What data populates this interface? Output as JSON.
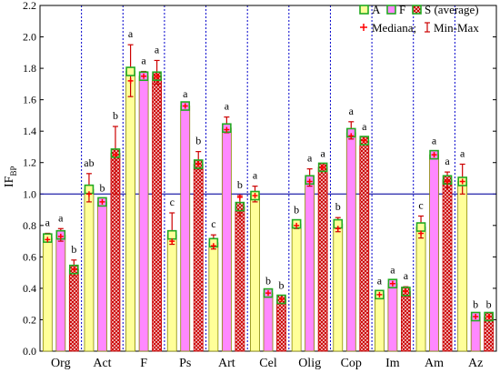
{
  "chart_data": {
    "type": "bar",
    "ylabel": "IF",
    "ylabel_subscript": "BP",
    "xlabel": "",
    "ylim": [
      0,
      2.2
    ],
    "yticks": [
      "0.0",
      "0.2",
      "0.4",
      "0.6",
      "0.8",
      "1.0",
      "1.2",
      "1.4",
      "1.6",
      "1.8",
      "2.0",
      "2.2"
    ],
    "reference_line": 1.0,
    "categories": [
      "Org",
      "Act",
      "F",
      "Ps",
      "Art",
      "Cel",
      "Olig",
      "Cop",
      "Im",
      "Am",
      "Az"
    ],
    "series": [
      {
        "name": "A",
        "fill": "#ffff99",
        "values": [
          0.72,
          1.03,
          1.78,
          0.74,
          0.69,
          0.99,
          0.81,
          0.81,
          0.36,
          0.79,
          1.08
        ],
        "medians": [
          0.71,
          1.0,
          1.72,
          0.7,
          0.67,
          0.99,
          0.8,
          0.78,
          0.36,
          0.75,
          1.08
        ],
        "mins": [
          0.7,
          0.95,
          1.62,
          0.68,
          0.65,
          0.95,
          0.78,
          0.76,
          0.34,
          0.72,
          1.0
        ],
        "maxs": [
          0.75,
          1.13,
          1.95,
          0.88,
          0.74,
          1.05,
          0.83,
          0.85,
          0.38,
          0.86,
          1.19
        ],
        "letters": [
          "a",
          "ab",
          "a",
          "c",
          "c",
          "a",
          "b",
          "b",
          "a",
          "c",
          "a"
        ]
      },
      {
        "name": "F",
        "fill": "#ff88ff",
        "values": [
          0.74,
          0.95,
          1.75,
          1.56,
          1.42,
          0.37,
          1.09,
          1.39,
          0.43,
          1.25,
          0.22
        ],
        "medians": [
          0.73,
          0.95,
          1.75,
          1.56,
          1.41,
          0.37,
          1.08,
          1.37,
          0.43,
          1.25,
          0.22
        ],
        "mins": [
          0.7,
          0.93,
          1.73,
          1.55,
          1.39,
          0.35,
          1.05,
          1.35,
          0.41,
          1.23,
          0.21
        ],
        "maxs": [
          0.78,
          0.97,
          1.78,
          1.57,
          1.49,
          0.38,
          1.16,
          1.46,
          0.45,
          1.27,
          0.23
        ],
        "letters": [
          "a",
          "b",
          "a",
          "a",
          "a",
          "b",
          "a",
          "a",
          "a",
          "a",
          "b"
        ]
      },
      {
        "name": "S (average)",
        "fill": "#cc0000",
        "values": [
          0.52,
          1.26,
          1.75,
          1.19,
          0.92,
          0.33,
          1.17,
          1.34,
          0.38,
          1.09,
          0.22
        ],
        "medians": [
          0.52,
          1.25,
          1.75,
          1.19,
          0.98,
          0.33,
          1.17,
          1.34,
          0.38,
          1.08,
          0.22
        ],
        "mins": [
          0.48,
          1.0,
          1.7,
          1.16,
          0.86,
          0.31,
          1.15,
          1.32,
          0.35,
          1.04,
          0.21
        ],
        "maxs": [
          0.58,
          1.43,
          1.85,
          1.27,
          0.99,
          0.35,
          1.19,
          1.36,
          0.41,
          1.14,
          0.23
        ],
        "letters": [
          "b",
          "b",
          "a",
          "b",
          "b",
          "b",
          "a",
          "a",
          "a",
          "a",
          "b"
        ]
      }
    ],
    "legend": {
      "placement": "top-right",
      "entries": [
        "A",
        "F",
        "S (average)",
        "Mediana;",
        "Min-Max"
      ]
    },
    "colors": {
      "bar_border": "#22aa22",
      "error_bar": "#cc0000",
      "median_marker": "#ff0000",
      "separator": "#0000cc",
      "reference_line": "#2222aa"
    }
  }
}
